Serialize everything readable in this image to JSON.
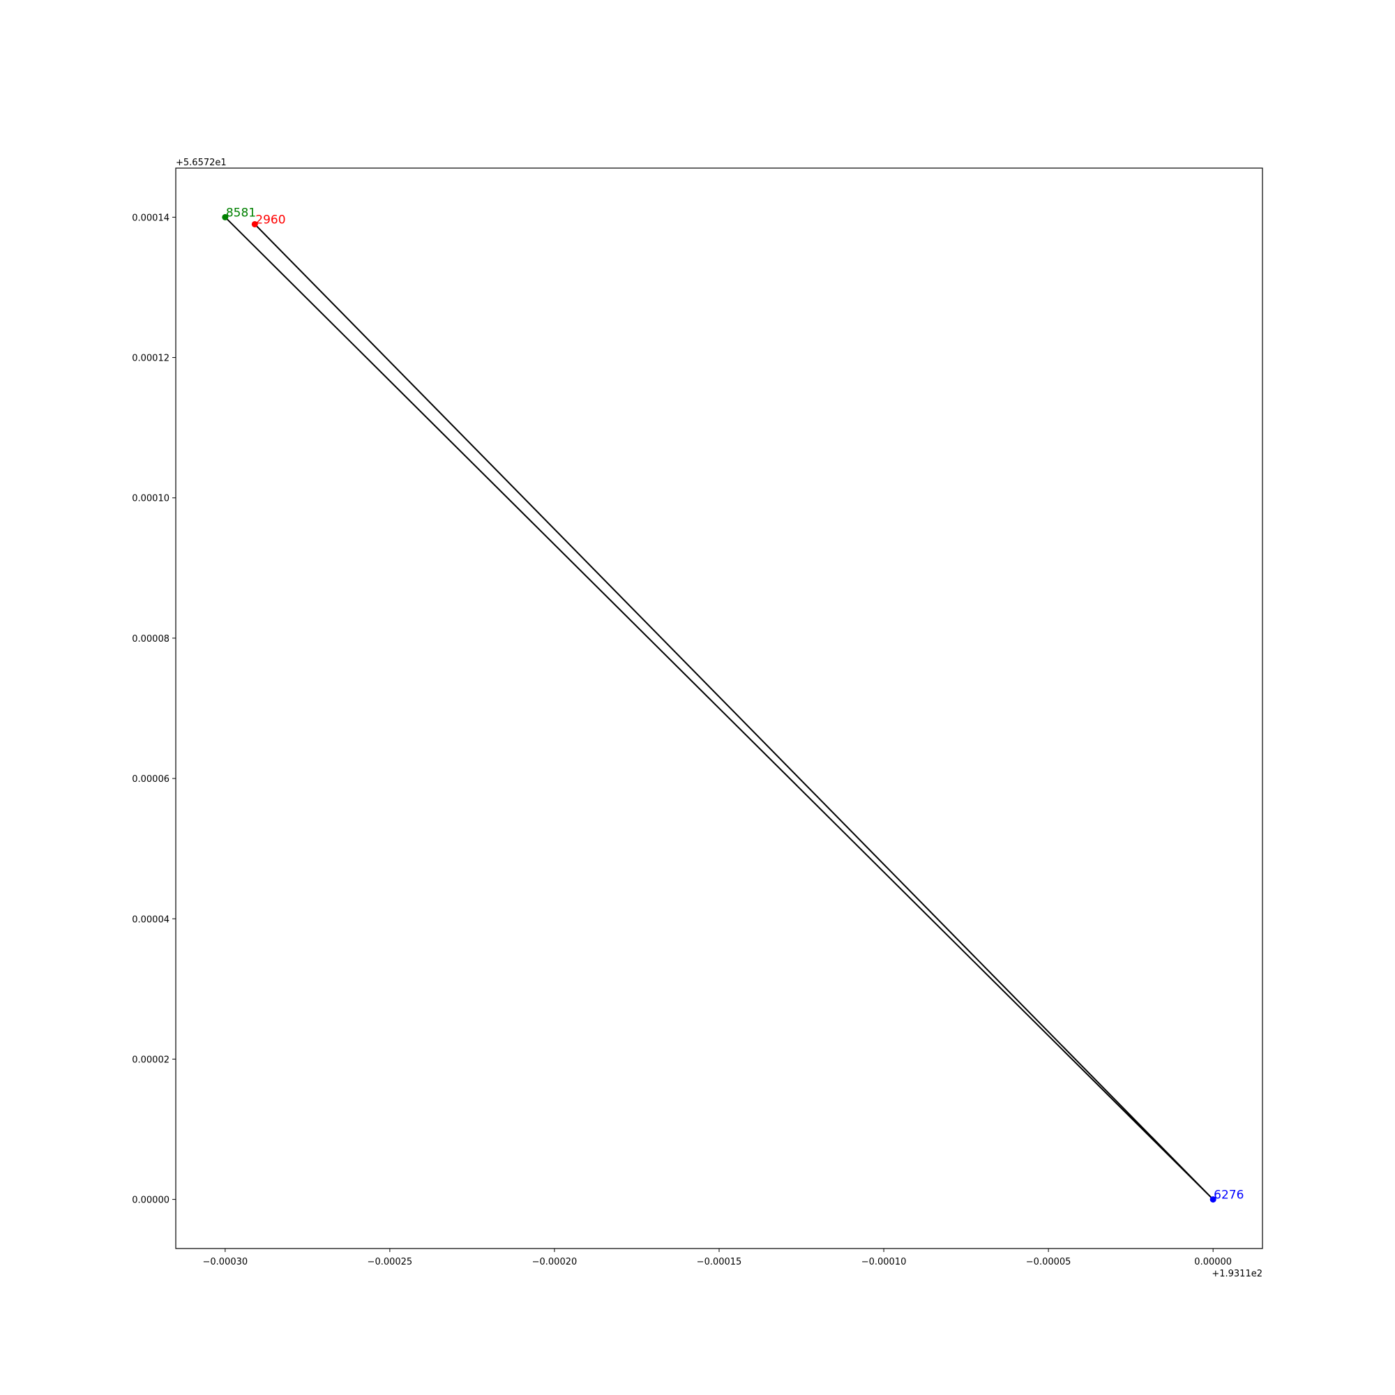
{
  "chart_data": {
    "type": "line",
    "title": "",
    "xlabel": "",
    "ylabel": "",
    "x_offset_label": "+1.9311e2",
    "y_offset_label": "+5.6572e1",
    "xlim": [
      -0.000315,
      1.5e-05
    ],
    "ylim": [
      -7e-06,
      0.000147
    ],
    "x_ticks": [
      -0.0003,
      -0.00025,
      -0.0002,
      -0.00015,
      -0.0001,
      -5e-05,
      0.0
    ],
    "x_tick_labels": [
      "−0.00030",
      "−0.00025",
      "−0.00020",
      "−0.00015",
      "−0.00010",
      "−0.00005",
      "0.00000"
    ],
    "y_ticks": [
      0.0,
      2e-05,
      4e-05,
      6e-05,
      8e-05,
      0.0001,
      0.00012,
      0.00014
    ],
    "y_tick_labels": [
      "0.00000",
      "0.00002",
      "0.00004",
      "0.00006",
      "0.00008",
      "0.00010",
      "0.00012",
      "0.00014"
    ],
    "grid": false,
    "path": {
      "color": "#000000",
      "x": [
        -0.000291,
        0.0,
        -0.0003,
        0.0
      ],
      "y": [
        0.000139,
        0.0,
        0.00014,
        0.0
      ]
    },
    "points": [
      {
        "label": "8581",
        "x": -0.0003,
        "y": 0.00014,
        "color": "#008000"
      },
      {
        "label": "2960",
        "x": -0.000291,
        "y": 0.000139,
        "color": "#ff0000"
      },
      {
        "label": "6276",
        "x": 0.0,
        "y": 0.0,
        "color": "#0000ff"
      }
    ]
  }
}
